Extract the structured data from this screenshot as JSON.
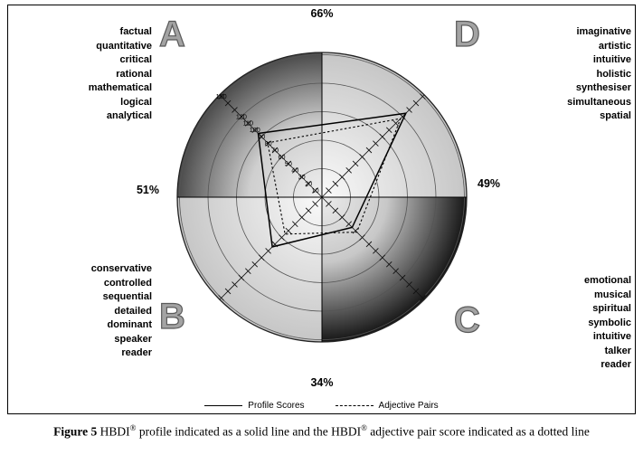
{
  "figure": {
    "caption": {
      "label": "Figure 5",
      "text1": " HBDI",
      "sup1": "®",
      "text2": " profile indicated as a solid line and the HBDI",
      "sup2": "®",
      "text3": " adjective pair score indicated as a dotted line"
    }
  },
  "chart_data": {
    "type": "radar",
    "title": "HBDI profile",
    "axes": [
      {
        "id": "A",
        "direction": "upper-left"
      },
      {
        "id": "D",
        "direction": "upper-right"
      },
      {
        "id": "C",
        "direction": "lower-right"
      },
      {
        "id": "B",
        "direction": "lower-left"
      }
    ],
    "ring_values": [
      30,
      60,
      90,
      120,
      150
    ],
    "scale_labels": [
      150,
      120,
      110,
      100,
      90,
      80,
      70,
      60,
      50,
      40,
      30,
      20,
      10
    ],
    "series": [
      {
        "name": "Profile Scores",
        "style": "solid",
        "values": {
          "A": 95,
          "D": 125,
          "C": 45,
          "B": 74
        }
      },
      {
        "name": "Adjective Pairs",
        "style": "dotted",
        "values": {
          "A": 81,
          "D": 117,
          "C": 52,
          "B": 55
        }
      }
    ],
    "quadrant_percents": {
      "top": "66%",
      "right": "49%",
      "bottom": "34%",
      "left": "51%"
    },
    "quadrants": {
      "A": {
        "letter": "A",
        "adjectives": [
          "factual",
          "quantitative",
          "critical",
          "rational",
          "mathematical",
          "logical",
          "analytical"
        ]
      },
      "D": {
        "letter": "D",
        "adjectives": [
          "imaginative",
          "artistic",
          "intuitive",
          "holistic",
          "synthesiser",
          "simultaneous",
          "spatial"
        ]
      },
      "B": {
        "letter": "B",
        "adjectives": [
          "conservative",
          "controlled",
          "sequential",
          "detailed",
          "dominant",
          "speaker",
          "reader"
        ]
      },
      "C": {
        "letter": "C",
        "adjectives": [
          "emotional",
          "musical",
          "spiritual",
          "symbolic",
          "intuitive",
          "talker",
          "reader"
        ]
      }
    },
    "colors": {
      "quadA_inner": "#efefef",
      "quadA_outer": "#4a4a4a",
      "quadC_inner": "#ececec",
      "quadC_outer": "#161616",
      "quadBD_inner": "#fafafa",
      "quadBD_outer": "#c6c6c6",
      "line": "#000000",
      "grid": "#555555"
    }
  }
}
